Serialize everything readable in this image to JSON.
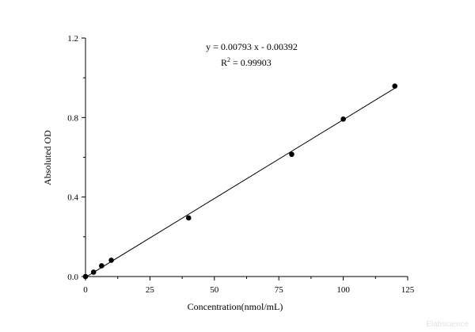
{
  "chart_data": {
    "type": "scatter",
    "xlabel": "Concentration(nmol/mL)",
    "ylabel": "Absoluted OD",
    "xlim": [
      0,
      125
    ],
    "ylim": [
      0,
      1.2
    ],
    "xticks": [
      "0",
      "25",
      "50",
      "75",
      "100",
      "125"
    ],
    "yticks": [
      "0.0",
      "0.4",
      "0.8",
      "1.2"
    ],
    "x": [
      0,
      3.13,
      6.25,
      10,
      40,
      80,
      100,
      120
    ],
    "y": [
      0.0,
      0.022,
      0.054,
      0.082,
      0.295,
      0.615,
      0.792,
      0.958
    ],
    "fit": {
      "slope": 0.00793,
      "intercept": -0.00392,
      "equation": "y = 0.00793 x - 0.00392",
      "r2_prefix": "R",
      "r2_sup": "2",
      "r2_value": " = 0.99903"
    },
    "grid": false,
    "legend": "none"
  },
  "watermark": "Elabscience"
}
